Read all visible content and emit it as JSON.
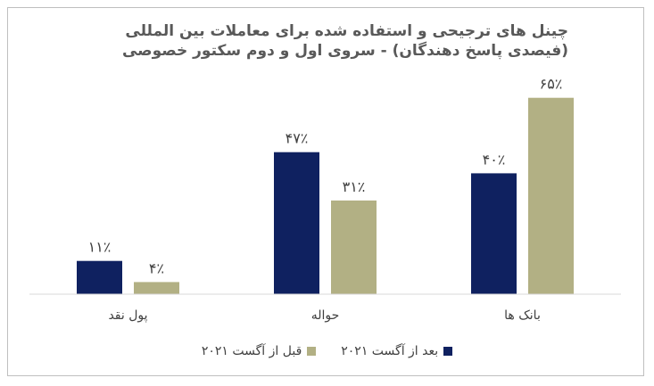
{
  "chart_data": {
    "type": "bar",
    "title": "چینل های ترجیحی و استفاده شده برای معاملات بین المللی (فیصدی پاسخ دهندگان) - سروی اول و دوم سکتور خصوصی",
    "categories": [
      "بانک ها",
      "حواله",
      "پول نقد"
    ],
    "series": [
      {
        "name": "بعد از آگست ۲۰۲۱",
        "color": "#0f2160",
        "values": [
          40,
          47,
          11
        ],
        "labels": [
          "۴۰٪",
          "۴۷٪",
          "۱۱٪"
        ]
      },
      {
        "name": "قبل از آگست ۲۰۲۱",
        "color": "#b2b084",
        "values": [
          65,
          31,
          4
        ],
        "labels": [
          "۶۵٪",
          "۳۱٪",
          "۴٪"
        ]
      }
    ],
    "ylim": [
      0,
      70
    ],
    "grid": false,
    "legend": "bottom",
    "axis_direction": "rtl"
  }
}
